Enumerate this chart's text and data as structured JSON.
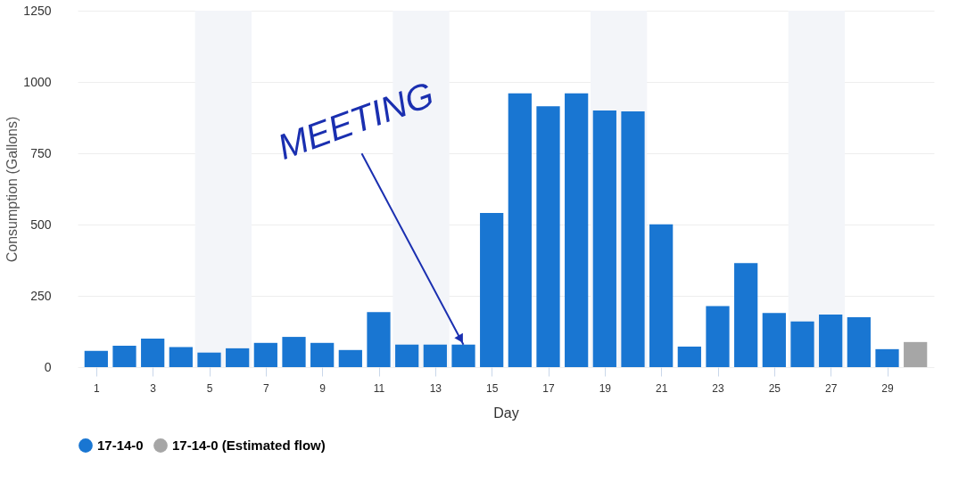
{
  "chart_data": {
    "type": "bar",
    "xlabel": "Day",
    "ylabel": "Consumption (Gallons)",
    "x": [
      1,
      2,
      3,
      4,
      5,
      6,
      7,
      8,
      9,
      10,
      11,
      12,
      13,
      14,
      15,
      16,
      17,
      18,
      19,
      20,
      21,
      22,
      23,
      24,
      25,
      26,
      27,
      28,
      29,
      30
    ],
    "series": [
      {
        "name": "17-14-0",
        "color": "#1976d2",
        "values": [
          57,
          75,
          100,
          70,
          51,
          66,
          85,
          106,
          85,
          60,
          193,
          79,
          79,
          79,
          541,
          960,
          915,
          960,
          900,
          897,
          501,
          72,
          214,
          365,
          190,
          160,
          184,
          175,
          63,
          null
        ]
      },
      {
        "name": "17-14-0 (Estimated flow)",
        "color": "#a6a6a6",
        "values": [
          null,
          null,
          null,
          null,
          null,
          null,
          null,
          null,
          null,
          null,
          null,
          null,
          null,
          null,
          null,
          null,
          null,
          null,
          null,
          null,
          null,
          null,
          null,
          null,
          null,
          null,
          null,
          null,
          null,
          88
        ]
      }
    ],
    "xlim": [
      0.5,
      30.5
    ],
    "xticks": [
      1,
      3,
      5,
      7,
      9,
      11,
      13,
      15,
      17,
      19,
      21,
      23,
      25,
      27,
      29
    ],
    "ylim": [
      0,
      1250
    ],
    "yticks": [
      0,
      250,
      500,
      750,
      1000,
      1250
    ],
    "bands": [
      {
        "axis": "x",
        "from": 4.5,
        "to": 6.5,
        "color": "#f3f5f9"
      },
      {
        "axis": "x",
        "from": 11.5,
        "to": 13.5,
        "color": "#f3f5f9"
      },
      {
        "axis": "x",
        "from": 18.5,
        "to": 20.5,
        "color": "#f3f5f9"
      },
      {
        "axis": "x",
        "from": 25.5,
        "to": 27.5,
        "color": "#f3f5f9"
      }
    ],
    "annotations": [
      {
        "text": "MEETING",
        "x": 14,
        "y": 79
      }
    ],
    "grid": "y",
    "legend": "bottom"
  }
}
